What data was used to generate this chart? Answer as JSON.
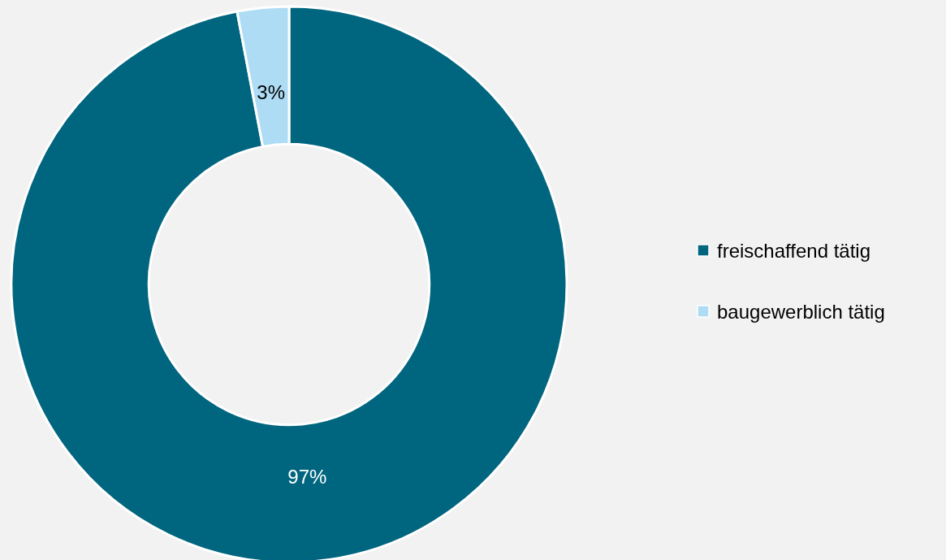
{
  "chart_data": {
    "type": "donut",
    "categories": [
      "freischaffend tätig",
      "baugewerblich tätig"
    ],
    "values": [
      97,
      3
    ],
    "colors": [
      "#00667f",
      "#addcf4"
    ],
    "value_labels": [
      "97%",
      "3%"
    ],
    "legend": "right"
  }
}
